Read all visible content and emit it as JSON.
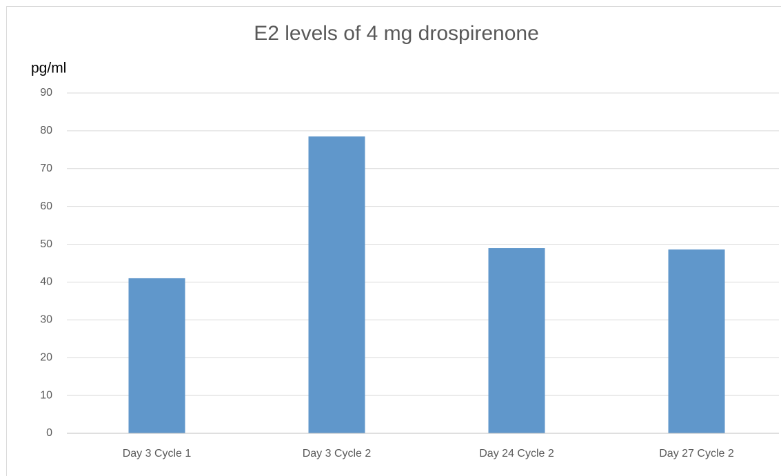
{
  "chart_data": {
    "type": "bar",
    "title": "E2 levels of 4 mg drospirenone",
    "y_label": "pg/ml",
    "categories": [
      "Day 3 Cycle 1",
      "Day 3 Cycle 2",
      "Day 24 Cycle 2",
      "Day 27 Cycle 2"
    ],
    "values": [
      41,
      78.5,
      49,
      48.6
    ],
    "color": "#6097cb",
    "ylim": [
      0,
      90
    ],
    "yticks": [
      0,
      10,
      20,
      30,
      40,
      50,
      60,
      70,
      80,
      90
    ],
    "grid": true
  }
}
